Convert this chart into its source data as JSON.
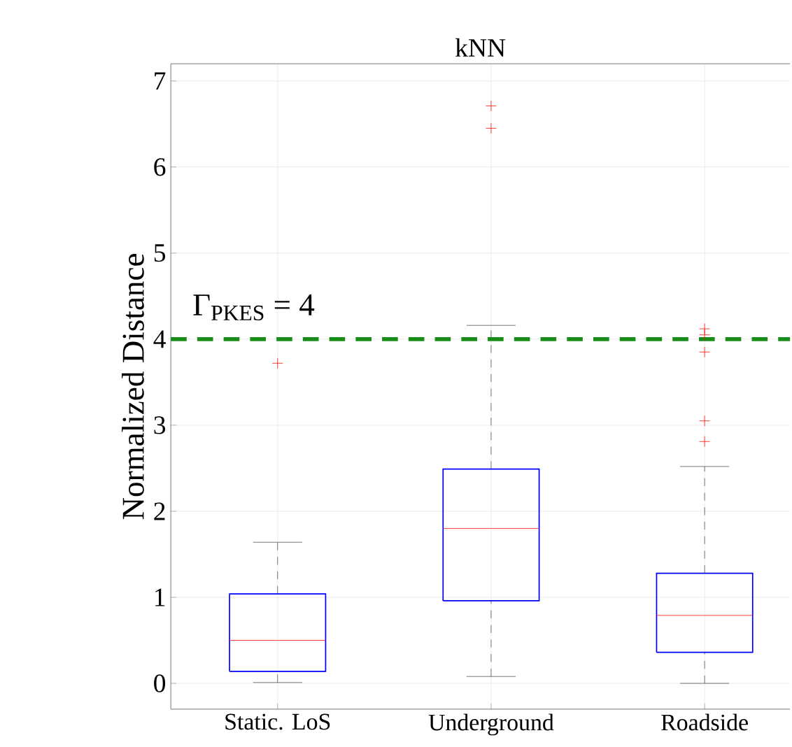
{
  "chart_data": {
    "type": "box",
    "title": "kNN",
    "ylabel": "Normalized Distance",
    "categories": [
      "Static. LoS",
      "Underground",
      "Roadside"
    ],
    "color": "#0000ff",
    "boxes": [
      {
        "low": 0.01,
        "q1": 0.14,
        "median": 0.5,
        "q3": 1.04,
        "high": 1.64,
        "outliers": [
          3.72
        ]
      },
      {
        "low": 0.08,
        "q1": 0.96,
        "median": 1.8,
        "q3": 2.49,
        "high": 4.16,
        "outliers": [
          6.45,
          6.71
        ]
      },
      {
        "low": 0.0,
        "q1": 0.36,
        "median": 0.79,
        "q3": 1.28,
        "high": 2.52,
        "outliers": [
          2.81,
          3.05,
          3.85,
          4.05,
          4.12
        ]
      }
    ],
    "ylim": [
      -0.3,
      7.2
    ],
    "yticks": [
      0,
      1,
      2,
      3,
      4,
      5,
      6,
      7
    ],
    "grid": true,
    "ref_lines": [
      {
        "axis": "y",
        "value": 4,
        "label": "Γ$_{PKES}$ = 4",
        "color": "#1a8c1a",
        "line_style": "dashed"
      }
    ]
  }
}
